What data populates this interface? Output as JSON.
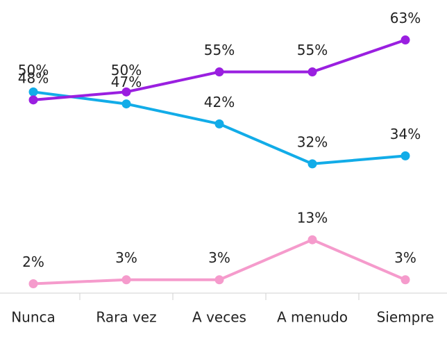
{
  "chart_data": {
    "type": "line",
    "categories": [
      "Nunca",
      "Rara vez",
      "A veces",
      "A menudo",
      "Siempre"
    ],
    "series": [
      {
        "color": "#12ace8",
        "values": [
          50,
          47,
          42,
          32,
          34
        ],
        "value_labels": [
          "50%",
          "47%",
          "42%",
          "32%",
          "34%"
        ]
      },
      {
        "color": "#9a1fe0",
        "values": [
          48,
          50,
          55,
          55,
          63
        ],
        "value_labels": [
          "48%",
          "50%",
          "55%",
          "55%",
          "63%"
        ]
      },
      {
        "color": "#f59bcc",
        "values": [
          2,
          3,
          3,
          13,
          3
        ],
        "value_labels": [
          "2%",
          "3%",
          "3%",
          "13%",
          "3%"
        ]
      }
    ],
    "ylim": [
      0,
      73
    ]
  }
}
